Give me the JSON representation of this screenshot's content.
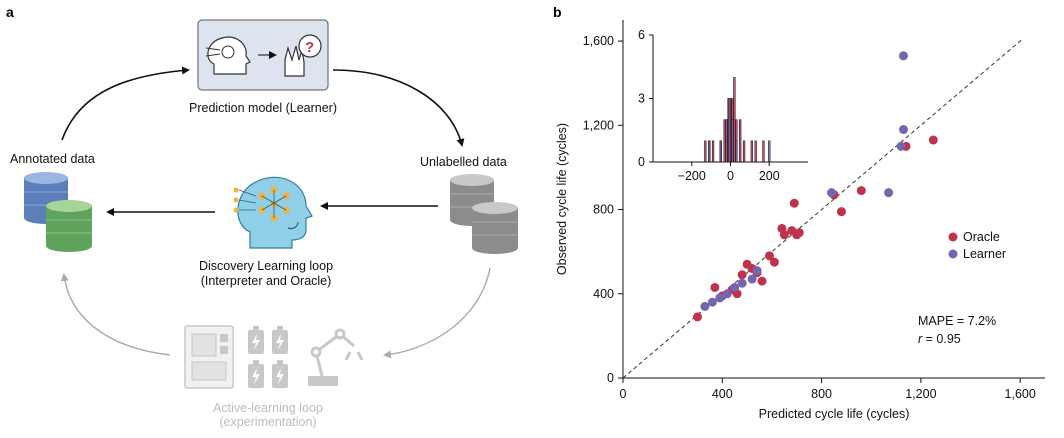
{
  "panel_a": {
    "label": "a",
    "prediction_model": "Prediction model (Learner)",
    "annotated_data": "Annotated data",
    "unlabelled_data": "Unlabelled data",
    "discovery_line1": "Discovery Learning loop",
    "discovery_line2": "(Interpreter and Oracle)",
    "active_line1": "Active-learning loop",
    "active_line2": "(experimentation)",
    "colors": {
      "arrow_dark": "#111111",
      "arrow_gray": "#aaaaaa",
      "db_blue": "#6a8fc9",
      "db_green": "#6cae6a",
      "db_gray": "#9a9a9a",
      "head_blue": "#8fd0e8",
      "node_orange": "#f1b33c",
      "faded": "#c8c8c8"
    }
  },
  "panel_b": {
    "label": "b",
    "mape_text": "MAPE = 7.2%",
    "r_symbol": "r",
    "r_text": " = 0.95",
    "chart_data": [
      {
        "type": "scatter",
        "title": "",
        "xlabel": "Predicted cycle life (cycles)",
        "ylabel": "Observed cycle life (cycles)",
        "xlim": [
          0,
          1700
        ],
        "ylim": [
          0,
          1700
        ],
        "xticks": [
          0,
          400,
          800,
          1200,
          1600
        ],
        "yticks": [
          0,
          400,
          800,
          1200,
          1600
        ],
        "xtick_labels": [
          "0",
          "400",
          "800",
          "1,200",
          "1,600"
        ],
        "ytick_labels": [
          "0",
          "400",
          "800",
          "1,200",
          "1,600"
        ],
        "diagonal": "y = x (dashed)",
        "legend": {
          "position": "right",
          "entries": [
            "Oracle",
            "Learner"
          ]
        },
        "series": [
          {
            "name": "Oracle",
            "color": "#c0334d",
            "points": [
              [
                300,
                290
              ],
              [
                370,
                430
              ],
              [
                400,
                390
              ],
              [
                440,
                420
              ],
              [
                460,
                400
              ],
              [
                480,
                490
              ],
              [
                500,
                540
              ],
              [
                520,
                520
              ],
              [
                540,
                500
              ],
              [
                560,
                460
              ],
              [
                590,
                580
              ],
              [
                610,
                550
              ],
              [
                640,
                710
              ],
              [
                650,
                680
              ],
              [
                680,
                700
              ],
              [
                690,
                830
              ],
              [
                700,
                680
              ],
              [
                710,
                690
              ],
              [
                850,
                870
              ],
              [
                880,
                790
              ],
              [
                960,
                890
              ],
              [
                1140,
                1100
              ],
              [
                1250,
                1130
              ]
            ]
          },
          {
            "name": "Learner",
            "color": "#7466ae",
            "points": [
              [
                330,
                340
              ],
              [
                360,
                360
              ],
              [
                390,
                380
              ],
              [
                420,
                400
              ],
              [
                450,
                430
              ],
              [
                480,
                450
              ],
              [
                520,
                470
              ],
              [
                540,
                510
              ],
              [
                840,
                880
              ],
              [
                1070,
                880
              ],
              [
                1120,
                1100
              ],
              [
                1130,
                1180
              ],
              [
                1130,
                1530
              ]
            ]
          }
        ]
      },
      {
        "type": "bar",
        "title": "inset error histogram",
        "xlim": [
          -400,
          400
        ],
        "ylim": [
          0,
          6
        ],
        "xticks": [
          -200,
          0,
          200
        ],
        "yticks": [
          0,
          3,
          6
        ],
        "xtick_labels": [
          "−200",
          "0",
          "200"
        ],
        "ytick_labels": [
          "0",
          "3",
          "6"
        ],
        "series": [
          {
            "name": "Oracle",
            "color": "#c0334d",
            "bins": [
              [
                -130,
                1
              ],
              [
                -110,
                1
              ],
              [
                -90,
                1
              ],
              [
                -50,
                1
              ],
              [
                -30,
                2
              ],
              [
                -20,
                2
              ],
              [
                -10,
                3
              ],
              [
                0,
                3
              ],
              [
                10,
                3
              ],
              [
                20,
                4
              ],
              [
                30,
                2
              ],
              [
                50,
                2
              ],
              [
                70,
                1
              ],
              [
                110,
                1
              ],
              [
                130,
                1
              ],
              [
                170,
                1
              ]
            ]
          },
          {
            "name": "Learner",
            "color": "#7466ae",
            "bins": [
              [
                -110,
                1
              ],
              [
                -50,
                1
              ],
              [
                -20,
                2
              ],
              [
                -5,
                3
              ],
              [
                10,
                2
              ],
              [
                30,
                1
              ],
              [
                200,
                1
              ]
            ]
          }
        ]
      }
    ]
  }
}
